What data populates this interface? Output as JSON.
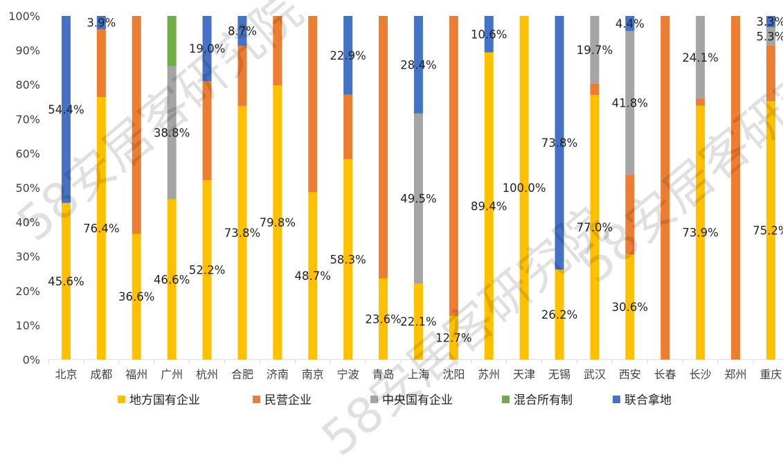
{
  "watermark": "58安居客研究院",
  "chart_data": {
    "type": "bar",
    "stacked": true,
    "title": "",
    "xlabel": "",
    "ylabel": "",
    "ylim": [
      0,
      100
    ],
    "yticks": [
      "0%",
      "10%",
      "20%",
      "30%",
      "40%",
      "50%",
      "60%",
      "70%",
      "80%",
      "90%",
      "100%"
    ],
    "grid": false,
    "legend_position": "bottom",
    "categories": [
      "北京",
      "成都",
      "福州",
      "广州",
      "杭州",
      "合肥",
      "济南",
      "南京",
      "宁波",
      "青岛",
      "上海",
      "沈阳",
      "苏州",
      "天津",
      "无锡",
      "武汉",
      "西安",
      "长春",
      "长沙",
      "郑州",
      "重庆"
    ],
    "series": [
      {
        "name": "地方国有企业",
        "color": "#FFC000",
        "values": [
          45.6,
          76.4,
          36.6,
          46.6,
          52.2,
          73.8,
          79.8,
          48.7,
          58.3,
          23.6,
          22.1,
          12.7,
          89.4,
          100.0,
          26.2,
          77.0,
          30.6,
          0,
          73.9,
          0,
          75.2
        ]
      },
      {
        "name": "民营企业",
        "color": "#ED7D31",
        "values": [
          0,
          19.7,
          63.4,
          0,
          28.8,
          17.5,
          20.2,
          51.3,
          18.8,
          76.4,
          0,
          87.3,
          0,
          0,
          0,
          3.3,
          23.2,
          100,
          2.0,
          100,
          16.2
        ]
      },
      {
        "name": "中央国有企业",
        "color": "#A5A5A5",
        "values": [
          0,
          0,
          0,
          38.8,
          0,
          0,
          0,
          0,
          0,
          0,
          49.5,
          0,
          0,
          0,
          0,
          19.7,
          41.8,
          0,
          24.1,
          0,
          5.3
        ]
      },
      {
        "name": "混合所有制",
        "color": "#70AD47",
        "values": [
          0,
          0,
          0,
          14.6,
          0,
          0,
          0,
          0,
          0,
          0,
          0,
          0,
          0,
          0,
          0,
          0,
          0,
          0,
          0,
          0,
          0
        ]
      },
      {
        "name": "联合拿地",
        "color": "#4472C4",
        "values": [
          54.4,
          3.9,
          0,
          0,
          19.0,
          8.7,
          0,
          0,
          22.9,
          0,
          28.4,
          0,
          10.6,
          0,
          73.8,
          0,
          4.4,
          0,
          0,
          0,
          3.3
        ]
      }
    ],
    "data_labels": [
      {
        "category": "北京",
        "series": "地方国有企业",
        "text": "45.6%"
      },
      {
        "category": "北京",
        "series": "联合拿地",
        "text": "54.4%"
      },
      {
        "category": "成都",
        "series": "地方国有企业",
        "text": "76.4%"
      },
      {
        "category": "成都",
        "series": "联合拿地",
        "text": "3.9%"
      },
      {
        "category": "福州",
        "series": "地方国有企业",
        "text": "36.6%"
      },
      {
        "category": "广州",
        "series": "地方国有企业",
        "text": "46.6%"
      },
      {
        "category": "广州",
        "series": "中央国有企业",
        "text": "38.8%"
      },
      {
        "category": "杭州",
        "series": "地方国有企业",
        "text": "52.2%"
      },
      {
        "category": "杭州",
        "series": "联合拿地",
        "text": "19.0%"
      },
      {
        "category": "合肥",
        "series": "地方国有企业",
        "text": "73.8%"
      },
      {
        "category": "合肥",
        "series": "联合拿地",
        "text": "8.7%"
      },
      {
        "category": "济南",
        "series": "地方国有企业",
        "text": "79.8%"
      },
      {
        "category": "南京",
        "series": "地方国有企业",
        "text": "48.7%"
      },
      {
        "category": "宁波",
        "series": "地方国有企业",
        "text": "58.3%"
      },
      {
        "category": "宁波",
        "series": "联合拿地",
        "text": "22.9%"
      },
      {
        "category": "青岛",
        "series": "地方国有企业",
        "text": "23.6%"
      },
      {
        "category": "上海",
        "series": "地方国有企业",
        "text": "22.1%"
      },
      {
        "category": "上海",
        "series": "中央国有企业",
        "text": "49.5%"
      },
      {
        "category": "上海",
        "series": "联合拿地",
        "text": "28.4%"
      },
      {
        "category": "沈阳",
        "series": "地方国有企业",
        "text": "12.7%"
      },
      {
        "category": "苏州",
        "series": "地方国有企业",
        "text": "89.4%"
      },
      {
        "category": "苏州",
        "series": "联合拿地",
        "text": "10.6%"
      },
      {
        "category": "天津",
        "series": "地方国有企业",
        "text": "100.0%"
      },
      {
        "category": "无锡",
        "series": "地方国有企业",
        "text": "26.2%"
      },
      {
        "category": "无锡",
        "series": "联合拿地",
        "text": "73.8%"
      },
      {
        "category": "武汉",
        "series": "地方国有企业",
        "text": "77.0%"
      },
      {
        "category": "武汉",
        "series": "中央国有企业",
        "text": "19.7%"
      },
      {
        "category": "西安",
        "series": "地方国有企业",
        "text": "30.6%"
      },
      {
        "category": "西安",
        "series": "中央国有企业",
        "text": "41.8%"
      },
      {
        "category": "西安",
        "series": "联合拿地",
        "text": "4.4%"
      },
      {
        "category": "长沙",
        "series": "地方国有企业",
        "text": "73.9%"
      },
      {
        "category": "长沙",
        "series": "中央国有企业",
        "text": "24.1%"
      },
      {
        "category": "重庆",
        "series": "地方国有企业",
        "text": "75.2%"
      },
      {
        "category": "重庆",
        "series": "中央国有企业",
        "text": "5.3%"
      },
      {
        "category": "重庆",
        "series": "联合拿地",
        "text": "3.3%"
      }
    ]
  }
}
